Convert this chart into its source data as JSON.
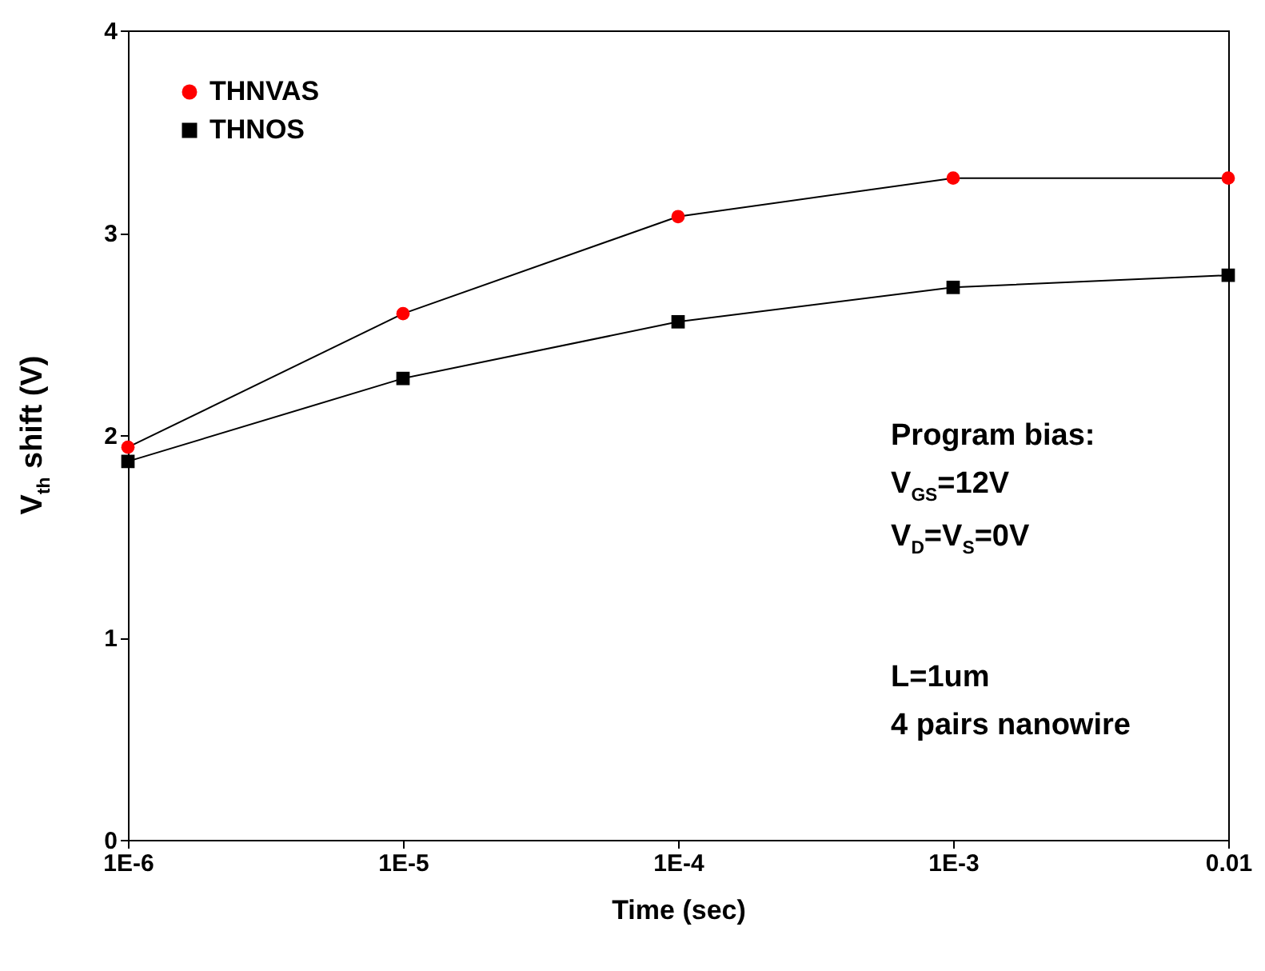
{
  "chart_data": {
    "type": "line",
    "xlabel": "Time (sec)",
    "ylabel": "V$_{th}$ shift (V)",
    "x": [
      1e-06,
      1e-05,
      0.0001,
      0.001,
      0.01
    ],
    "series": [
      {
        "name": "THNVAS",
        "color": "#ff0000",
        "marker": "circle",
        "values": [
          1.94,
          2.6,
          3.08,
          3.27,
          3.27
        ]
      },
      {
        "name": "THNOS",
        "color": "#000000",
        "marker": "square",
        "values": [
          1.87,
          2.28,
          2.56,
          2.73,
          2.79
        ]
      }
    ],
    "log": "x",
    "xlim": [
      1e-06,
      0.01
    ],
    "xticks": [
      {
        "value": 1e-06,
        "label": "1E-6"
      },
      {
        "value": 1e-05,
        "label": "1E-5"
      },
      {
        "value": 0.0001,
        "label": "1E-4"
      },
      {
        "value": 0.001,
        "label": "1E-3"
      },
      {
        "value": 0.01,
        "label": "0.01"
      }
    ],
    "ylim": [
      0,
      4
    ],
    "yticks": [
      0,
      1,
      2,
      3,
      4
    ],
    "grid": false,
    "legend": "top left",
    "annotations": [
      "Program bias:",
      "V$_{GS}$=12V",
      "V$_{D}$=V$_{S}$=0V",
      "L=1um",
      "4 pairs nanowire"
    ]
  }
}
